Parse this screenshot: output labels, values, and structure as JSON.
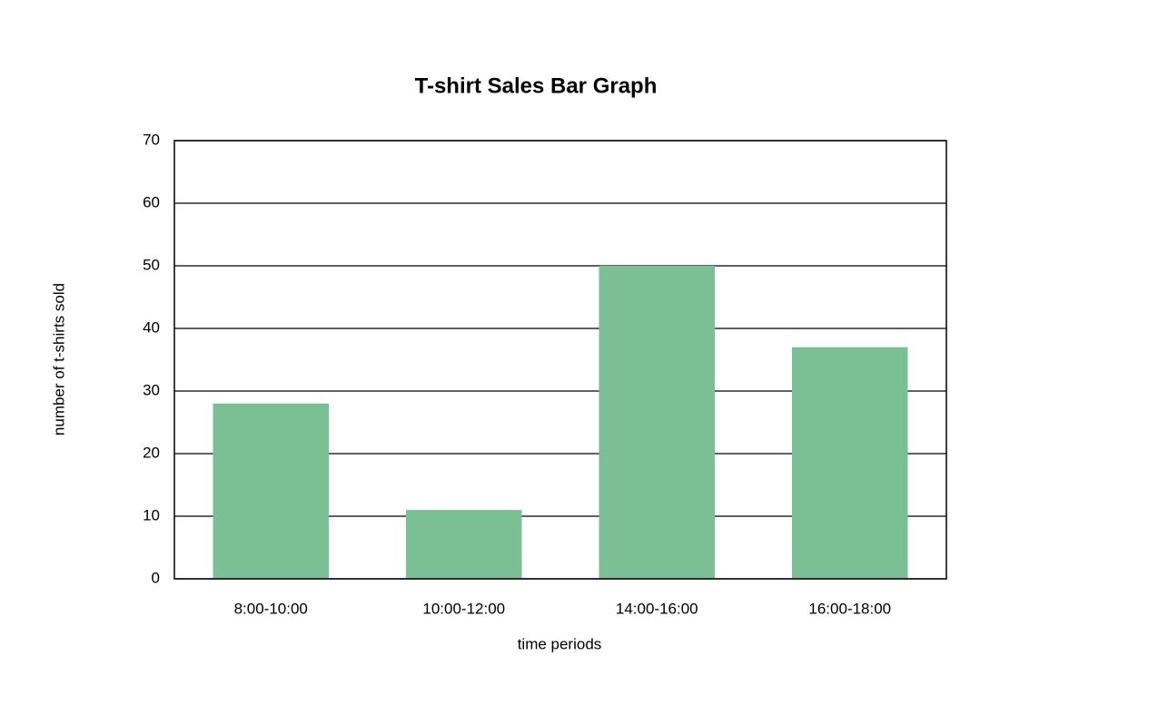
{
  "chart_data": {
    "type": "bar",
    "title": "T-shirt Sales Bar Graph",
    "x_label": "time periods",
    "y_label": "number of t-shirts sold",
    "categories": [
      "8:00-10:00",
      "10:00-12:00",
      "14:00-16:00",
      "16:00-18:00"
    ],
    "values": [
      28,
      11,
      50,
      37
    ],
    "color": "#7bbf95",
    "ylim": [
      0,
      70
    ],
    "yticks": [
      0,
      10,
      20,
      30,
      40,
      50,
      60,
      70
    ],
    "grid": true
  }
}
